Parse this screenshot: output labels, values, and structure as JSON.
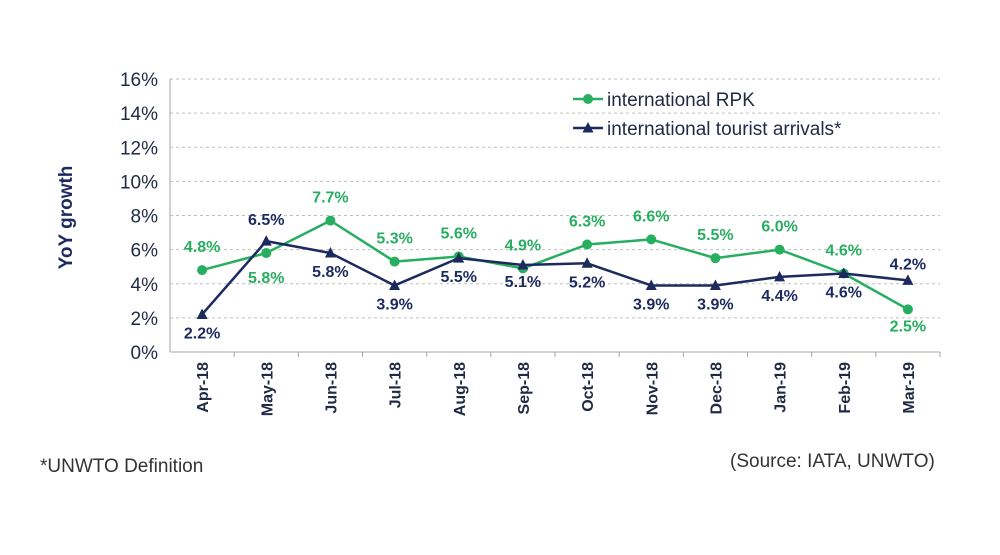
{
  "chart_data": {
    "type": "line",
    "categories": [
      "Apr-18",
      "May-18",
      "Jun-18",
      "Jul-18",
      "Aug-18",
      "Sep-18",
      "Oct-18",
      "Nov-18",
      "Dec-18",
      "Jan-19",
      "Feb-19",
      "Mar-19"
    ],
    "ylabel": "YoY growth",
    "ylim": [
      0,
      16
    ],
    "yticks": [
      "0%",
      "2%",
      "4%",
      "6%",
      "8%",
      "10%",
      "12%",
      "14%",
      "16%"
    ],
    "grid": true,
    "legend_position": "top-right",
    "series": [
      {
        "name": "international RPK",
        "color": "#27ae60",
        "marker": "circle",
        "values": [
          4.8,
          5.8,
          7.7,
          5.3,
          5.6,
          4.9,
          6.3,
          6.6,
          5.5,
          6.0,
          4.6,
          2.5
        ],
        "labels": [
          "4.8%",
          "5.8%",
          "7.7%",
          "5.3%",
          "5.6%",
          "4.9%",
          "6.3%",
          "6.6%",
          "5.5%",
          "6.0%",
          "4.6%",
          "2.5%"
        ]
      },
      {
        "name": "international tourist arrivals*",
        "color": "#1c2a5e",
        "marker": "triangle",
        "values": [
          2.2,
          6.5,
          5.8,
          3.9,
          5.5,
          5.1,
          5.2,
          3.9,
          3.9,
          4.4,
          4.6,
          4.2
        ],
        "labels": [
          "2.2%",
          "6.5%",
          "5.8%",
          "3.9%",
          "5.5%",
          "5.1%",
          "5.2%",
          "3.9%",
          "3.9%",
          "4.4%",
          "4.6%",
          "4.2%"
        ]
      }
    ]
  },
  "footnote": "*UNWTO Definition",
  "source": "(Source: IATA, UNWTO)"
}
